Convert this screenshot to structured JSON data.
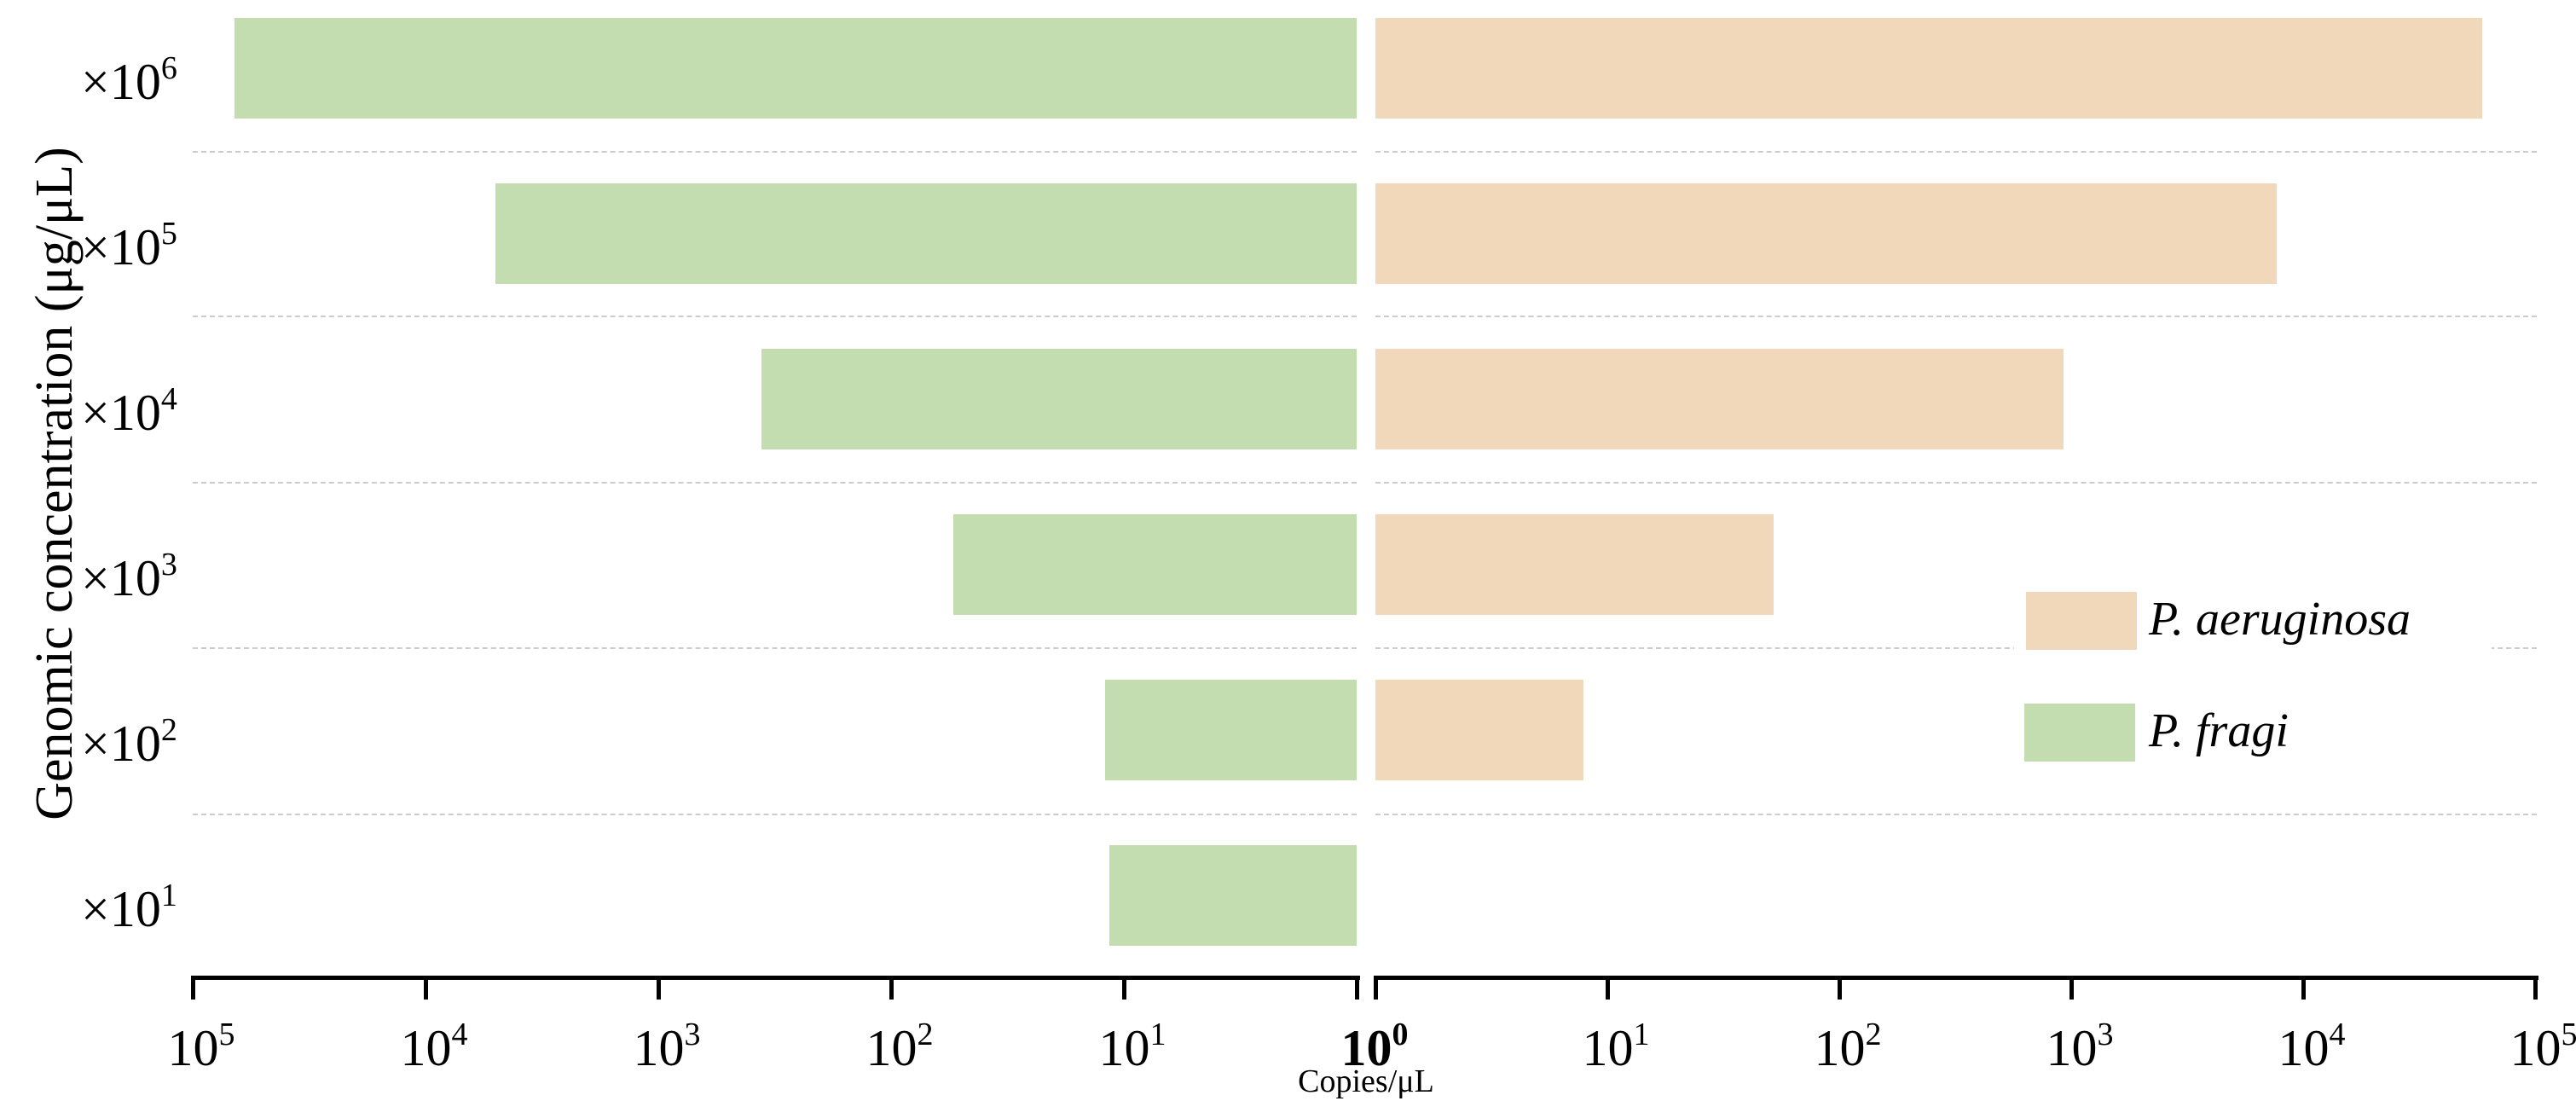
{
  "chart_data": {
    "type": "bar",
    "orientation": "horizontal",
    "layout": "back-to-back (butterfly) with log10 x-axes mirrored around 10^0",
    "title": "",
    "xlabel": "Copies/μL",
    "ylabel": "Genomic concentration (μg/μL)",
    "xscale": "log",
    "xlim_left": [
      100000,
      1
    ],
    "xlim_right": [
      1,
      100000
    ],
    "grid": "horizontal dashed lines between categories",
    "legend_position": "right, lower-middle",
    "categories": [
      "×10^6",
      "×10^5",
      "×10^4",
      "×10^3",
      "×10^2",
      "×10^1"
    ],
    "category_labels": [
      {
        "base": "×10",
        "exp": "6"
      },
      {
        "base": "×10",
        "exp": "5"
      },
      {
        "base": "×10",
        "exp": "4"
      },
      {
        "base": "×10",
        "exp": "3"
      },
      {
        "base": "×10",
        "exp": "2"
      },
      {
        "base": "×10",
        "exp": "1"
      }
    ],
    "x_ticks_left": [
      {
        "base": "10",
        "exp": "5",
        "value": 100000
      },
      {
        "base": "10",
        "exp": "4",
        "value": 10000
      },
      {
        "base": "10",
        "exp": "3",
        "value": 1000
      },
      {
        "base": "10",
        "exp": "2",
        "value": 100
      },
      {
        "base": "10",
        "exp": "1",
        "value": 10
      },
      {
        "base": "10",
        "exp": "0",
        "value": 1
      }
    ],
    "x_ticks_right": [
      {
        "base": "10",
        "exp": "0",
        "value": 1
      },
      {
        "base": "10",
        "exp": "1",
        "value": 10
      },
      {
        "base": "10",
        "exp": "2",
        "value": 100
      },
      {
        "base": "10",
        "exp": "3",
        "value": 1000
      },
      {
        "base": "10",
        "exp": "4",
        "value": 10000
      },
      {
        "base": "10",
        "exp": "5",
        "value": 100000
      }
    ],
    "series": [
      {
        "name": "P. fragi",
        "side": "left",
        "color": "#c3ddb0",
        "values": [
          66000,
          5000,
          360,
          54,
          12,
          11.5
        ]
      },
      {
        "name": "P. aeruginosa",
        "side": "right",
        "color": "#f2d8bb",
        "values": [
          59000,
          7700,
          930,
          52,
          7.9,
          null
        ]
      }
    ]
  },
  "legend": [
    {
      "label": "P. aeruginosa",
      "color": "#f2d8bb"
    },
    {
      "label": "P. fragi",
      "color": "#c3ddb0"
    }
  ],
  "colors": {
    "fragi": "#c3ddb0",
    "aeruginosa": "#f2d8bb",
    "grid": "#cccccc",
    "axis": "#000000"
  }
}
